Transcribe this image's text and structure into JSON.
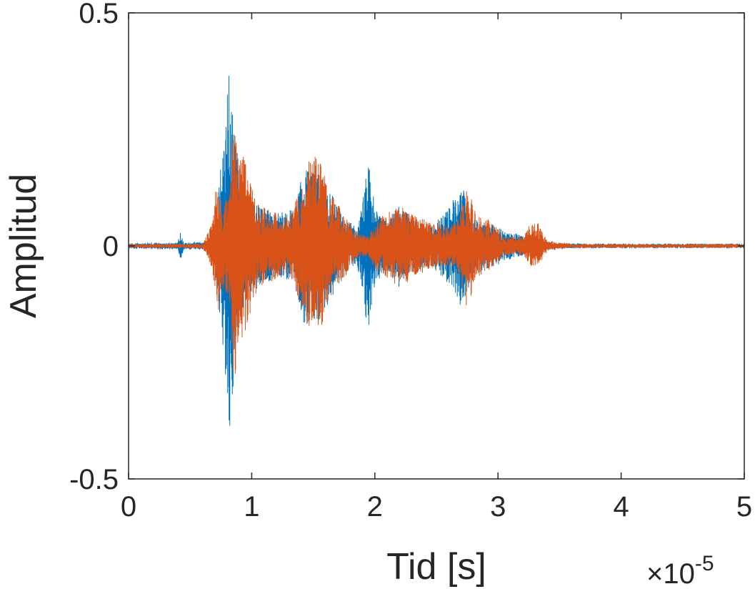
{
  "chart_data": {
    "type": "line",
    "title": "",
    "xlabel": "Tid [s]",
    "ylabel": "Amplitud",
    "x_multiplier": {
      "prefix": "×10",
      "exponent": "-5"
    },
    "xlim": [
      0,
      5
    ],
    "ylim": [
      -0.5,
      0.5
    ],
    "x_unit_scale": 1e-05,
    "xticks": [
      0,
      1,
      2,
      3,
      4,
      5
    ],
    "xtick_labels": [
      "0",
      "1",
      "2",
      "3",
      "4",
      "5"
    ],
    "yticks": [
      -0.5,
      0,
      0.5
    ],
    "ytick_labels": [
      "-0.5",
      "0",
      "0.5"
    ],
    "grid": false,
    "legend": "none",
    "series": [
      {
        "color": "#0072BD",
        "envelope": [
          [
            0.0,
            0.004
          ],
          [
            0.4,
            0.006
          ],
          [
            0.42,
            0.03
          ],
          [
            0.45,
            0.006
          ],
          [
            0.68,
            0.008
          ],
          [
            0.72,
            0.09
          ],
          [
            0.78,
            0.25
          ],
          [
            0.82,
            0.4
          ],
          [
            0.84,
            0.33
          ],
          [
            0.88,
            0.2
          ],
          [
            0.95,
            0.12
          ],
          [
            1.05,
            0.09
          ],
          [
            1.2,
            0.07
          ],
          [
            1.35,
            0.08
          ],
          [
            1.42,
            0.17
          ],
          [
            1.5,
            0.18
          ],
          [
            1.55,
            0.16
          ],
          [
            1.65,
            0.11
          ],
          [
            1.75,
            0.06
          ],
          [
            1.85,
            0.04
          ],
          [
            1.9,
            0.09
          ],
          [
            1.95,
            0.21
          ],
          [
            2.0,
            0.08
          ],
          [
            2.1,
            0.05
          ],
          [
            2.2,
            0.09
          ],
          [
            2.3,
            0.06
          ],
          [
            2.45,
            0.04
          ],
          [
            2.6,
            0.08
          ],
          [
            2.7,
            0.14
          ],
          [
            2.8,
            0.06
          ],
          [
            3.0,
            0.04
          ],
          [
            3.1,
            0.03
          ],
          [
            3.2,
            0.02
          ],
          [
            3.35,
            0.01
          ],
          [
            3.5,
            0.004
          ],
          [
            4.0,
            0.003
          ],
          [
            5.0,
            0.003
          ]
        ]
      },
      {
        "color": "#D95319",
        "envelope": [
          [
            0.0,
            0.003
          ],
          [
            0.6,
            0.004
          ],
          [
            0.68,
            0.05
          ],
          [
            0.72,
            0.16
          ],
          [
            0.76,
            0.09
          ],
          [
            0.82,
            0.11
          ],
          [
            0.85,
            0.3
          ],
          [
            0.88,
            0.28
          ],
          [
            0.93,
            0.2
          ],
          [
            0.98,
            0.15
          ],
          [
            1.05,
            0.09
          ],
          [
            1.2,
            0.07
          ],
          [
            1.3,
            0.06
          ],
          [
            1.4,
            0.13
          ],
          [
            1.48,
            0.2
          ],
          [
            1.55,
            0.19
          ],
          [
            1.62,
            0.12
          ],
          [
            1.75,
            0.07
          ],
          [
            1.85,
            0.03
          ],
          [
            1.95,
            0.02
          ],
          [
            2.0,
            0.05
          ],
          [
            2.1,
            0.07
          ],
          [
            2.2,
            0.09
          ],
          [
            2.3,
            0.07
          ],
          [
            2.45,
            0.05
          ],
          [
            2.6,
            0.04
          ],
          [
            2.68,
            0.06
          ],
          [
            2.75,
            0.14
          ],
          [
            2.82,
            0.07
          ],
          [
            2.95,
            0.05
          ],
          [
            3.05,
            0.02
          ],
          [
            3.2,
            0.02
          ],
          [
            3.25,
            0.04
          ],
          [
            3.32,
            0.05
          ],
          [
            3.4,
            0.01
          ],
          [
            3.6,
            0.003
          ],
          [
            5.0,
            0.003
          ]
        ]
      }
    ]
  }
}
